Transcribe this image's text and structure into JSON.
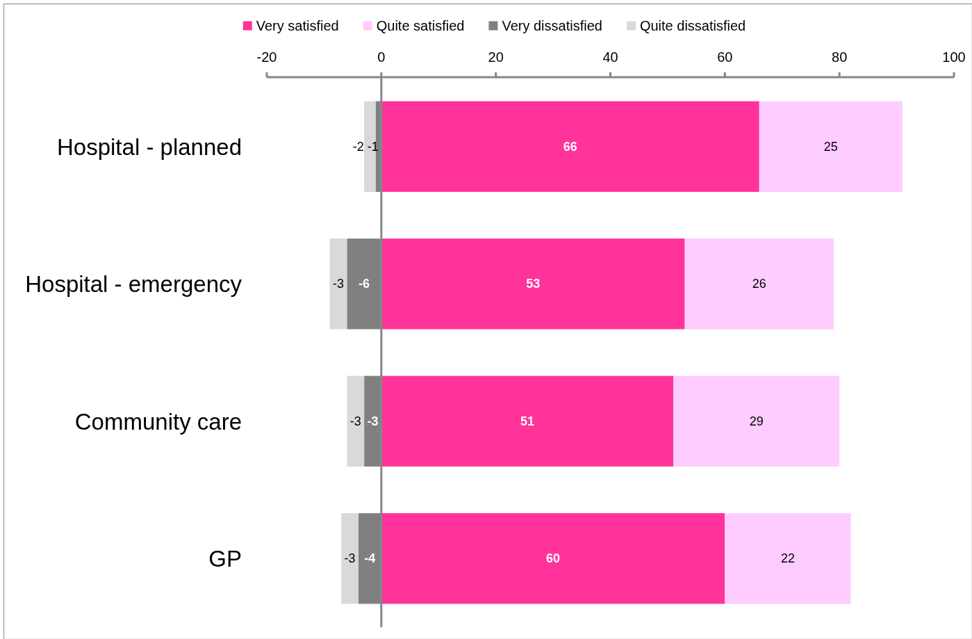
{
  "chart_data": {
    "type": "bar",
    "orientation": "horizontal",
    "stacked": true,
    "categories": [
      "Hospital - planned",
      "Hospital - emergency",
      "Community care",
      "GP"
    ],
    "series": [
      {
        "name": "Very satisfied",
        "color": "#ff3399",
        "values": [
          66,
          53,
          51,
          60
        ]
      },
      {
        "name": "Quite satisfied",
        "color": "#ffccff",
        "values": [
          25,
          26,
          29,
          22
        ]
      },
      {
        "name": "Very dissatisfied",
        "color": "#808080",
        "values": [
          -1,
          -6,
          -3,
          -4
        ]
      },
      {
        "name": "Quite dissatisfied",
        "color": "#d9d9d9",
        "values": [
          -2,
          -3,
          -3,
          -3
        ]
      }
    ],
    "xlim": [
      -20,
      100
    ],
    "xticks": [
      -20,
      0,
      20,
      40,
      60,
      80,
      100
    ],
    "data_labels": true,
    "legend": "top"
  }
}
